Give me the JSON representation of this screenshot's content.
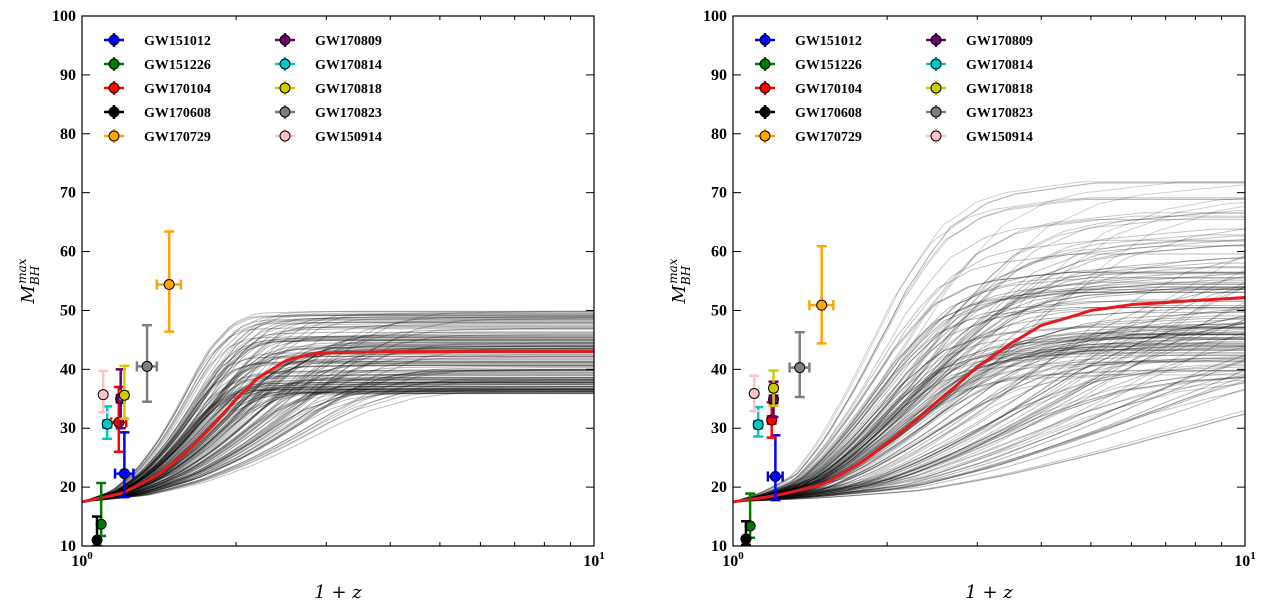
{
  "chart_data": [
    {
      "type": "line",
      "xlabel": "1 + z",
      "ylabel": "M_BH^max",
      "xscale": "log",
      "xlim": [
        1,
        10
      ],
      "ylim": [
        10,
        100
      ],
      "yticks": [
        10,
        20,
        30,
        40,
        50,
        60,
        70,
        80,
        90,
        100
      ],
      "xticks": [
        "10^0",
        "10^1"
      ],
      "legend_position": "top-left",
      "median_curve": {
        "color": "#e41a1c",
        "x": [
          1.0,
          1.2,
          1.4,
          1.6,
          1.8,
          2.0,
          2.2,
          2.5,
          2.8,
          3.0,
          4.0,
          10.0
        ],
        "y": [
          17.5,
          19.0,
          22.0,
          26.0,
          30.5,
          35.0,
          38.5,
          41.5,
          42.6,
          42.8,
          43.0,
          43.0
        ]
      },
      "band_note": "ensemble of posterior sample curves",
      "points": [
        {
          "name": "GW151012",
          "color": "#0000ff",
          "x": 1.21,
          "y": 22.3,
          "yerr_lo": 4.0,
          "yerr_hi": 7.0,
          "xerr_lo": 0.05,
          "xerr_hi": 0.05
        },
        {
          "name": "GW151226",
          "color": "#007a00",
          "x": 1.09,
          "y": 13.7,
          "yerr_lo": 2.0,
          "yerr_hi": 7.0,
          "xerr_lo": 0.0,
          "xerr_hi": 0.0
        },
        {
          "name": "GW170104",
          "color": "#ff0000",
          "x": 1.18,
          "y": 31.0,
          "yerr_lo": 5.0,
          "yerr_hi": 6.0,
          "xerr_lo": 0.04,
          "xerr_hi": 0.04
        },
        {
          "name": "GW170608",
          "color": "#000000",
          "x": 1.07,
          "y": 11.0,
          "yerr_lo": 1.0,
          "yerr_hi": 4.0,
          "xerr_lo": 0.0,
          "xerr_hi": 0.0
        },
        {
          "name": "GW170729",
          "color": "#ffa500",
          "x": 1.48,
          "y": 54.4,
          "yerr_lo": 8.0,
          "yerr_hi": 9.0,
          "xerr_lo": 0.08,
          "xerr_hi": 0.08
        },
        {
          "name": "GW170809",
          "color": "#6a006a",
          "x": 1.19,
          "y": 35.0,
          "yerr_lo": 5.0,
          "yerr_hi": 5.0,
          "xerr_lo": 0.02,
          "xerr_hi": 0.02
        },
        {
          "name": "GW170814",
          "color": "#00c8c8",
          "x": 1.12,
          "y": 30.7,
          "yerr_lo": 2.5,
          "yerr_hi": 3.0,
          "xerr_lo": 0.02,
          "xerr_hi": 0.02
        },
        {
          "name": "GW170818",
          "color": "#cccc00",
          "x": 1.21,
          "y": 35.6,
          "yerr_lo": 4.0,
          "yerr_hi": 5.0,
          "xerr_lo": 0.02,
          "xerr_hi": 0.02
        },
        {
          "name": "GW170823",
          "color": "#7f7f7f",
          "x": 1.34,
          "y": 40.5,
          "yerr_lo": 6.0,
          "yerr_hi": 7.0,
          "xerr_lo": 0.06,
          "xerr_hi": 0.06
        },
        {
          "name": "GW150914",
          "color": "#ffc0cb",
          "x": 1.1,
          "y": 35.7,
          "yerr_lo": 3.0,
          "yerr_hi": 4.0,
          "xerr_lo": 0.0,
          "xerr_hi": 0.0
        }
      ]
    },
    {
      "type": "line",
      "xlabel": "1 + z",
      "ylabel": "M_BH^max",
      "xscale": "log",
      "xlim": [
        1,
        10
      ],
      "ylim": [
        10,
        100
      ],
      "yticks": [
        10,
        20,
        30,
        40,
        50,
        60,
        70,
        80,
        90,
        100
      ],
      "xticks": [
        "10^0",
        "10^1"
      ],
      "legend_position": "top-left",
      "median_curve": {
        "color": "#e41a1c",
        "x": [
          1.0,
          1.2,
          1.5,
          1.8,
          2.0,
          2.5,
          3.0,
          3.5,
          4.0,
          5.0,
          6.0,
          8.0,
          10.0
        ],
        "y": [
          17.5,
          18.5,
          20.5,
          24.5,
          27.5,
          34.5,
          40.5,
          44.5,
          47.5,
          50.0,
          51.0,
          51.7,
          52.2
        ]
      },
      "band_note": "ensemble of posterior sample curves",
      "points": [
        {
          "name": "GW151012",
          "color": "#0000ff",
          "x": 1.21,
          "y": 21.8,
          "yerr_lo": 4.0,
          "yerr_hi": 7.0,
          "xerr_lo": 0.04,
          "xerr_hi": 0.04
        },
        {
          "name": "GW151226",
          "color": "#007a00",
          "x": 1.08,
          "y": 13.4,
          "yerr_lo": 2.0,
          "yerr_hi": 5.5,
          "xerr_lo": 0.0,
          "xerr_hi": 0.0
        },
        {
          "name": "GW170104",
          "color": "#ff0000",
          "x": 1.19,
          "y": 31.4,
          "yerr_lo": 3.0,
          "yerr_hi": 3.0,
          "xerr_lo": 0.02,
          "xerr_hi": 0.02
        },
        {
          "name": "GW170608",
          "color": "#000000",
          "x": 1.06,
          "y": 11.2,
          "yerr_lo": 1.0,
          "yerr_hi": 3.0,
          "xerr_lo": 0.0,
          "xerr_hi": 0.0
        },
        {
          "name": "GW170729",
          "color": "#ffa500",
          "x": 1.49,
          "y": 50.9,
          "yerr_lo": 6.5,
          "yerr_hi": 10.0,
          "xerr_lo": 0.08,
          "xerr_hi": 0.08
        },
        {
          "name": "GW170809",
          "color": "#6a006a",
          "x": 1.2,
          "y": 34.9,
          "yerr_lo": 3.0,
          "yerr_hi": 3.0,
          "xerr_lo": 0.02,
          "xerr_hi": 0.02
        },
        {
          "name": "GW170814",
          "color": "#00c8c8",
          "x": 1.12,
          "y": 30.6,
          "yerr_lo": 2.0,
          "yerr_hi": 3.0,
          "xerr_lo": 0.02,
          "xerr_hi": 0.02
        },
        {
          "name": "GW170818",
          "color": "#cccc00",
          "x": 1.2,
          "y": 36.8,
          "yerr_lo": 3.0,
          "yerr_hi": 3.0,
          "xerr_lo": 0.02,
          "xerr_hi": 0.02
        },
        {
          "name": "GW170823",
          "color": "#7f7f7f",
          "x": 1.35,
          "y": 40.3,
          "yerr_lo": 5.0,
          "yerr_hi": 6.0,
          "xerr_lo": 0.06,
          "xerr_hi": 0.06
        },
        {
          "name": "GW150914",
          "color": "#ffc0cb",
          "x": 1.1,
          "y": 35.9,
          "yerr_lo": 3.0,
          "yerr_hi": 3.0,
          "xerr_lo": 0.0,
          "xerr_hi": 0.0
        }
      ]
    }
  ]
}
